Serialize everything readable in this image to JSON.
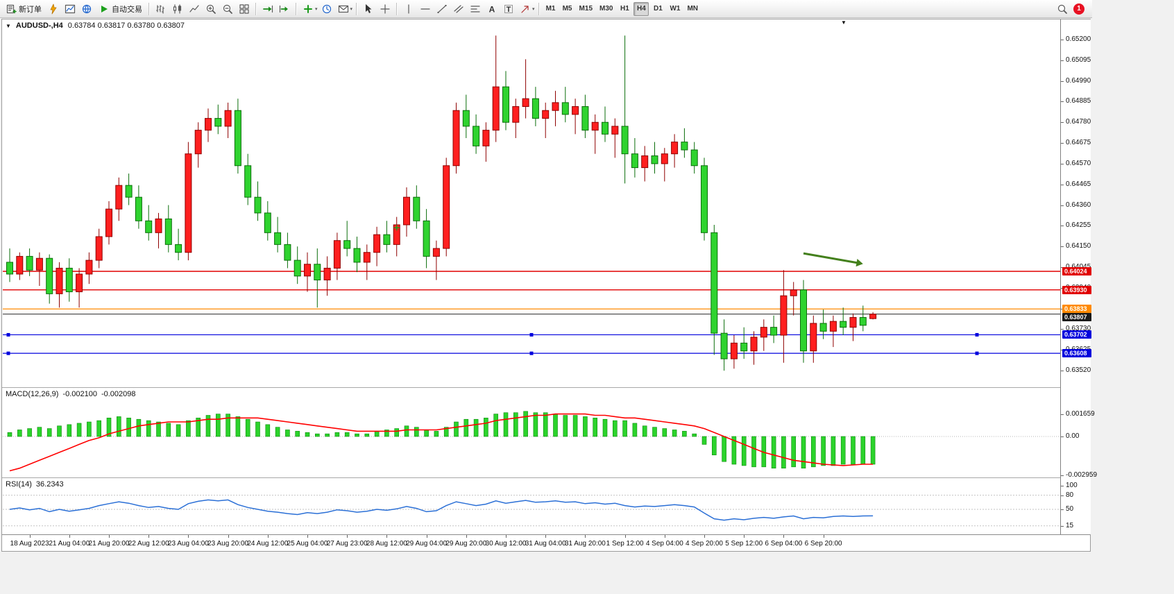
{
  "icons": {
    "caret": "▾",
    "triangle_down": "▼",
    "text_glyph": "A",
    "label_glyph": "T"
  },
  "toolbar": {
    "new_order_label": "新订单",
    "auto_trading_label": "自动交易",
    "timeframes": [
      "M1",
      "M5",
      "M15",
      "M30",
      "H1",
      "H4",
      "D1",
      "W1",
      "MN"
    ],
    "active_timeframe": "H4",
    "notification_count": "1"
  },
  "chart_data": {
    "type": "candlestick",
    "main": {
      "symbol_title": "AUDUSD-,H4",
      "ohlc_text": "0.63784 0.63817 0.63780 0.63807",
      "price_top": 0.65302,
      "price_bottom": 0.63436,
      "colors": {
        "up_fill": "#ff1f1f",
        "up_border": "#8f0000",
        "down_fill": "#2fd32f",
        "down_border": "#0a6e0a"
      },
      "y_axis_labels": [
        "0.65200",
        "0.65095",
        "0.64990",
        "0.64885",
        "0.64780",
        "0.64675",
        "0.64570",
        "0.64465",
        "0.64360",
        "0.64255",
        "0.64150",
        "0.64045",
        "0.63940",
        "0.63835",
        "0.63730",
        "0.63625",
        "0.63520"
      ],
      "x_labels": [
        "18 Aug 2023",
        "21 Aug 04:00",
        "21 Aug 20:00",
        "22 Aug 12:00",
        "23 Aug 04:00",
        "23 Aug 20:00",
        "24 Aug 12:00",
        "25 Aug 04:00",
        "27 Aug 23:00",
        "28 Aug 12:00",
        "29 Aug 04:00",
        "29 Aug 20:00",
        "30 Aug 12:00",
        "31 Aug 04:00",
        "31 Aug 20:00",
        "1 Sep 12:00",
        "4 Sep 04:00",
        "4 Sep 20:00",
        "5 Sep 12:00",
        "6 Sep 04:00",
        "6 Sep 20:00"
      ],
      "hlines": [
        {
          "price": 0.64024,
          "label": "0.64024",
          "color": "#e10000",
          "width": 1.4
        },
        {
          "price": 0.6393,
          "label": "0.63930",
          "color": "#e10000",
          "width": 1.4
        },
        {
          "price": 0.63833,
          "label": "0.63833",
          "color": "#ff8a00",
          "width": 1.2
        },
        {
          "price": 0.63807,
          "label": "0.63807",
          "color": "#2a2a2a",
          "width": 1,
          "tag_color": "#1a1a1a",
          "current": true
        },
        {
          "price": 0.63702,
          "label": "0.63702",
          "color": "#0000dd",
          "width": 1.2,
          "handles": true
        },
        {
          "price": 0.63608,
          "label": "0.63608",
          "color": "#0000dd",
          "width": 1.2,
          "handles": true
        }
      ],
      "plus_marker": {
        "bar": 39,
        "price": 0.64245,
        "color": "#1da11d"
      },
      "arrow": {
        "from_bar": 80,
        "from_price": 0.64115,
        "to_bar": 86,
        "to_price": 0.64062,
        "color": "#44801c"
      },
      "candles": [
        [
          0.6407,
          0.6414,
          0.6397,
          0.6401
        ],
        [
          0.6401,
          0.6412,
          0.6398,
          0.641
        ],
        [
          0.641,
          0.6414,
          0.64,
          0.6403
        ],
        [
          0.6403,
          0.6412,
          0.6395,
          0.6409
        ],
        [
          0.6409,
          0.6411,
          0.6386,
          0.6391
        ],
        [
          0.6391,
          0.6407,
          0.6384,
          0.6404
        ],
        [
          0.6404,
          0.6409,
          0.6387,
          0.6392
        ],
        [
          0.6392,
          0.6404,
          0.6384,
          0.6401
        ],
        [
          0.6401,
          0.6412,
          0.6396,
          0.6408
        ],
        [
          0.6408,
          0.6424,
          0.6404,
          0.642
        ],
        [
          0.642,
          0.6438,
          0.6416,
          0.6434
        ],
        [
          0.6434,
          0.645,
          0.6428,
          0.6446
        ],
        [
          0.6446,
          0.6452,
          0.6436,
          0.644
        ],
        [
          0.644,
          0.6446,
          0.6424,
          0.6428
        ],
        [
          0.6428,
          0.6436,
          0.6418,
          0.6422
        ],
        [
          0.6422,
          0.6432,
          0.6414,
          0.6429
        ],
        [
          0.6429,
          0.6436,
          0.6412,
          0.6416
        ],
        [
          0.6416,
          0.6424,
          0.6408,
          0.6412
        ],
        [
          0.6412,
          0.6468,
          0.6408,
          0.6462
        ],
        [
          0.6462,
          0.6478,
          0.6455,
          0.6474
        ],
        [
          0.6474,
          0.6485,
          0.6468,
          0.648
        ],
        [
          0.648,
          0.6487,
          0.6472,
          0.6476
        ],
        [
          0.6476,
          0.6488,
          0.647,
          0.6484
        ],
        [
          0.6484,
          0.649,
          0.6452,
          0.6456
        ],
        [
          0.6456,
          0.6462,
          0.6436,
          0.644
        ],
        [
          0.644,
          0.6448,
          0.6428,
          0.6432
        ],
        [
          0.6432,
          0.6438,
          0.6418,
          0.6422
        ],
        [
          0.6422,
          0.643,
          0.6412,
          0.6416
        ],
        [
          0.6416,
          0.6422,
          0.6404,
          0.6408
        ],
        [
          0.6408,
          0.6415,
          0.6396,
          0.64
        ],
        [
          0.64,
          0.6412,
          0.6392,
          0.6406
        ],
        [
          0.6406,
          0.6414,
          0.6384,
          0.6398
        ],
        [
          0.6398,
          0.641,
          0.639,
          0.6404
        ],
        [
          0.6404,
          0.6422,
          0.6398,
          0.6418
        ],
        [
          0.6418,
          0.6428,
          0.641,
          0.6414
        ],
        [
          0.6414,
          0.642,
          0.6402,
          0.6407
        ],
        [
          0.6407,
          0.6416,
          0.6398,
          0.6412
        ],
        [
          0.6412,
          0.6425,
          0.6405,
          0.6421
        ],
        [
          0.6421,
          0.6428,
          0.6412,
          0.6416
        ],
        [
          0.6416,
          0.643,
          0.641,
          0.6426
        ],
        [
          0.6426,
          0.6445,
          0.642,
          0.644
        ],
        [
          0.644,
          0.6446,
          0.6424,
          0.6428
        ],
        [
          0.6428,
          0.6434,
          0.6404,
          0.641
        ],
        [
          0.641,
          0.6418,
          0.6398,
          0.6414
        ],
        [
          0.6414,
          0.646,
          0.641,
          0.6456
        ],
        [
          0.6456,
          0.6488,
          0.6452,
          0.6484
        ],
        [
          0.6484,
          0.6492,
          0.647,
          0.6476
        ],
        [
          0.6476,
          0.6482,
          0.6462,
          0.6466
        ],
        [
          0.6466,
          0.6478,
          0.6458,
          0.6474
        ],
        [
          0.6474,
          0.6522,
          0.6468,
          0.6496
        ],
        [
          0.6496,
          0.6504,
          0.6474,
          0.6478
        ],
        [
          0.6478,
          0.649,
          0.647,
          0.6486
        ],
        [
          0.6486,
          0.651,
          0.648,
          0.649
        ],
        [
          0.649,
          0.6496,
          0.6476,
          0.648
        ],
        [
          0.648,
          0.6488,
          0.647,
          0.6484
        ],
        [
          0.6484,
          0.6494,
          0.6476,
          0.6488
        ],
        [
          0.6488,
          0.6496,
          0.6478,
          0.6482
        ],
        [
          0.6482,
          0.649,
          0.6472,
          0.6486
        ],
        [
          0.6486,
          0.6492,
          0.647,
          0.6474
        ],
        [
          0.6474,
          0.6482,
          0.6462,
          0.6478
        ],
        [
          0.6478,
          0.6486,
          0.6468,
          0.6472
        ],
        [
          0.6472,
          0.648,
          0.646,
          0.6476
        ],
        [
          0.6476,
          0.6522,
          0.6447,
          0.6462
        ],
        [
          0.6462,
          0.647,
          0.645,
          0.6455
        ],
        [
          0.6455,
          0.6466,
          0.6448,
          0.6461
        ],
        [
          0.6461,
          0.6468,
          0.6452,
          0.6457
        ],
        [
          0.6457,
          0.6465,
          0.6448,
          0.6462
        ],
        [
          0.6462,
          0.6472,
          0.6455,
          0.6468
        ],
        [
          0.6468,
          0.6475,
          0.646,
          0.6464
        ],
        [
          0.6464,
          0.6468,
          0.6452,
          0.6456
        ],
        [
          0.6456,
          0.646,
          0.6418,
          0.6422
        ],
        [
          0.6422,
          0.6426,
          0.636,
          0.6371
        ],
        [
          0.6371,
          0.6378,
          0.6352,
          0.6358
        ],
        [
          0.6358,
          0.637,
          0.6353,
          0.6366
        ],
        [
          0.6366,
          0.6374,
          0.6358,
          0.6362
        ],
        [
          0.6362,
          0.6372,
          0.6355,
          0.6369
        ],
        [
          0.6369,
          0.6378,
          0.6362,
          0.6374
        ],
        [
          0.6374,
          0.638,
          0.6366,
          0.637
        ],
        [
          0.637,
          0.6403,
          0.6356,
          0.639
        ],
        [
          0.639,
          0.6397,
          0.638,
          0.6393
        ],
        [
          0.6393,
          0.6398,
          0.6356,
          0.6362
        ],
        [
          0.6362,
          0.638,
          0.6356,
          0.6376
        ],
        [
          0.6376,
          0.6383,
          0.6368,
          0.6372
        ],
        [
          0.6372,
          0.638,
          0.6364,
          0.6377
        ],
        [
          0.6377,
          0.6384,
          0.637,
          0.6374
        ],
        [
          0.6374,
          0.6381,
          0.6367,
          0.6379
        ],
        [
          0.6379,
          0.6385,
          0.6372,
          0.6375
        ],
        [
          0.63784,
          0.63817,
          0.6378,
          0.63807
        ]
      ]
    },
    "macd": {
      "label": "MACD(12,26,9)",
      "value_main": "-0.002100",
      "value_signal": "-0.002098",
      "axis_labels": [
        "0.001659",
        "0.00",
        "-0.002959"
      ],
      "axis_values": [
        0.001659,
        0,
        -0.002959
      ],
      "histogram_color": "#2bd32b",
      "histogram_border": "#0b8a0b",
      "signal_color": "#ff0000",
      "histogram": [
        0.0003,
        0.0005,
        0.0006,
        0.0007,
        0.0006,
        0.0008,
        0.0009,
        0.001,
        0.0011,
        0.0012,
        0.0014,
        0.0015,
        0.0014,
        0.0013,
        0.0012,
        0.0011,
        0.001,
        0.0009,
        0.0012,
        0.0014,
        0.0016,
        0.0017,
        0.0017,
        0.0015,
        0.0013,
        0.0011,
        0.0009,
        0.0007,
        0.0005,
        0.0004,
        0.0003,
        0.0002,
        0.0002,
        0.0003,
        0.0003,
        0.0002,
        0.0002,
        0.0004,
        0.0005,
        0.0006,
        0.0008,
        0.0007,
        0.0005,
        0.0004,
        0.0007,
        0.0011,
        0.0013,
        0.0013,
        0.0014,
        0.0017,
        0.0018,
        0.0018,
        0.0019,
        0.0018,
        0.0018,
        0.0017,
        0.0016,
        0.0016,
        0.0015,
        0.0014,
        0.0013,
        0.0012,
        0.0012,
        0.001,
        0.0008,
        0.0007,
        0.0006,
        0.0005,
        0.0004,
        0.0002,
        -0.0006,
        -0.0014,
        -0.0019,
        -0.0021,
        -0.0022,
        -0.0023,
        -0.0023,
        -0.0024,
        -0.0024,
        -0.0023,
        -0.0024,
        -0.0023,
        -0.0022,
        -0.0022,
        -0.0021,
        -0.0021,
        -0.0021,
        -0.0021
      ],
      "signal": [
        -0.0026,
        -0.0024,
        -0.0021,
        -0.0018,
        -0.0015,
        -0.0012,
        -0.0009,
        -0.0006,
        -0.0003,
        -0.0001,
        0.0002,
        0.0004,
        0.0006,
        0.0008,
        0.0009,
        0.001,
        0.0011,
        0.0011,
        0.0011,
        0.0012,
        0.0013,
        0.0013,
        0.0014,
        0.0014,
        0.0014,
        0.0014,
        0.0013,
        0.0012,
        0.0011,
        0.001,
        0.0009,
        0.0008,
        0.0007,
        0.0006,
        0.0005,
        0.0004,
        0.0004,
        0.0004,
        0.0004,
        0.0004,
        0.0005,
        0.0005,
        0.0005,
        0.0005,
        0.0006,
        0.0007,
        0.0008,
        0.0009,
        0.001,
        0.0012,
        0.0013,
        0.0014,
        0.0015,
        0.0016,
        0.0016,
        0.0017,
        0.0017,
        0.0017,
        0.0017,
        0.0016,
        0.0016,
        0.0015,
        0.0014,
        0.0014,
        0.0013,
        0.0012,
        0.0011,
        0.001,
        0.0009,
        0.0008,
        0.0006,
        0.0003,
        0.0,
        -0.0003,
        -0.0006,
        -0.0009,
        -0.0012,
        -0.0014,
        -0.0016,
        -0.0018,
        -0.0019,
        -0.002,
        -0.0021,
        -0.00215,
        -0.0022,
        -0.00215,
        -0.0021,
        -0.0021
      ]
    },
    "rsi": {
      "label": "RSI(14)",
      "value": "36.2343",
      "color": "#2a6fd6",
      "axis_labels": [
        "100",
        "80",
        "50",
        "15"
      ],
      "axis_values": [
        100,
        80,
        50,
        15
      ],
      "levels": [
        80,
        50,
        15
      ],
      "values": [
        50,
        53,
        49,
        52,
        45,
        50,
        46,
        49,
        52,
        58,
        62,
        66,
        63,
        58,
        54,
        56,
        52,
        50,
        62,
        67,
        70,
        68,
        70,
        60,
        54,
        50,
        46,
        44,
        41,
        39,
        43,
        41,
        44,
        49,
        47,
        44,
        46,
        50,
        48,
        51,
        56,
        52,
        45,
        47,
        58,
        66,
        62,
        58,
        61,
        68,
        63,
        66,
        69,
        65,
        66,
        68,
        65,
        66,
        62,
        64,
        61,
        63,
        58,
        55,
        57,
        56,
        58,
        60,
        58,
        55,
        42,
        30,
        27,
        30,
        28,
        31,
        33,
        31,
        34,
        36,
        30,
        33,
        32,
        35,
        36,
        35,
        36,
        36.2
      ]
    }
  }
}
